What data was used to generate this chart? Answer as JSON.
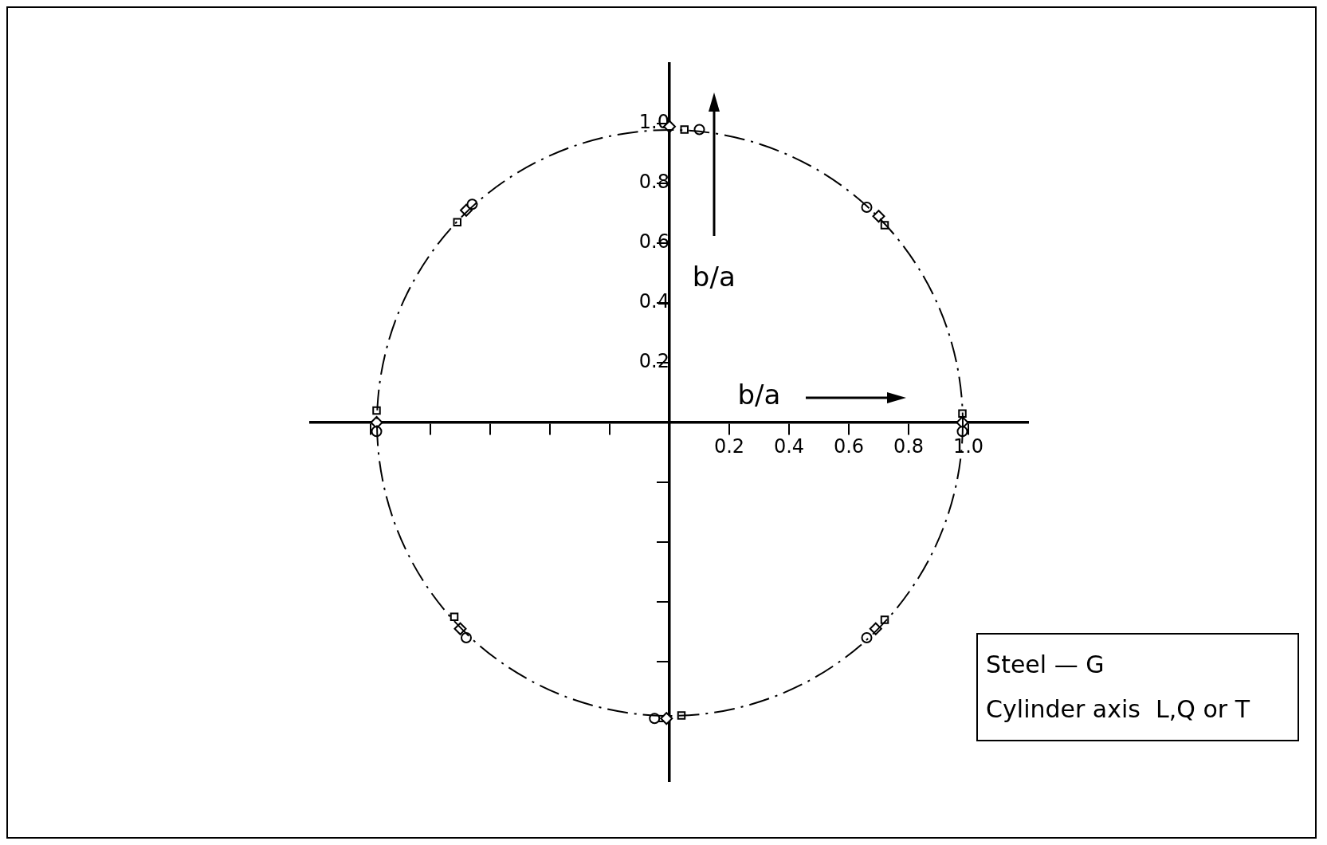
{
  "chart_data": {
    "type": "scatter",
    "xlabel": "b/a",
    "ylabel": "b/a",
    "annotations": [
      "Steel — G",
      "Cylinder axis  L,Q or T"
    ],
    "xlim": [
      -1.2,
      1.2
    ],
    "ylim": [
      -1.2,
      1.2
    ],
    "xticks": [
      {
        "value": -1.0,
        "label": null
      },
      {
        "value": -0.8,
        "label": null
      },
      {
        "value": -0.6,
        "label": null
      },
      {
        "value": -0.4,
        "label": null
      },
      {
        "value": -0.2,
        "label": null
      },
      0.2,
      0.4,
      0.6,
      0.8,
      {
        "value": 1.0,
        "label": "1.0"
      }
    ],
    "yticks": [
      {
        "value": -1.0,
        "label": null
      },
      {
        "value": -0.8,
        "label": null
      },
      {
        "value": -0.6,
        "label": null
      },
      {
        "value": -0.4,
        "label": null
      },
      {
        "value": -0.2,
        "label": null
      },
      0.2,
      0.4,
      0.6,
      0.8,
      {
        "value": 1.0,
        "label": "1.0"
      }
    ],
    "grid": false,
    "legend": false,
    "series": [
      {
        "marker": "circle",
        "color": "#000000",
        "x": [
          0.1,
          0.66,
          0.98,
          0.66,
          -0.05,
          -0.68,
          -0.98,
          -0.66
        ],
        "values": [
          0.98,
          0.72,
          -0.03,
          -0.72,
          -0.99,
          -0.72,
          -0.03,
          0.73
        ]
      },
      {
        "marker": "square",
        "color": "#000000",
        "x": [
          0.05,
          0.72,
          0.98,
          0.72,
          0.04,
          -0.72,
          -0.98,
          -0.71
        ],
        "values": [
          0.98,
          0.66,
          0.03,
          -0.66,
          -0.98,
          -0.65,
          0.04,
          0.67
        ]
      },
      {
        "marker": "diamond",
        "color": "#000000",
        "x": [
          0,
          0.7,
          0.98,
          0.69,
          -0.01,
          -0.7,
          -0.98,
          -0.68
        ],
        "values": [
          0.99,
          0.69,
          0,
          -0.69,
          -0.99,
          -0.69,
          0,
          0.71
        ]
      }
    ]
  }
}
